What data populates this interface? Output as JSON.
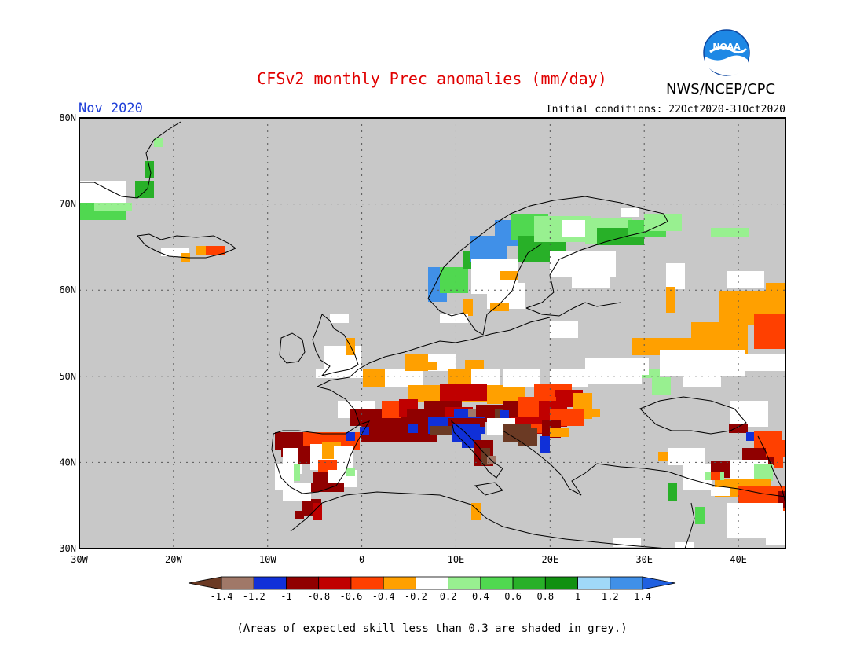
{
  "header": {
    "title": "CFSv2 monthly Prec anomalies (mm/day)",
    "agency": "NWS/NCEP/CPC",
    "logo_text": "NOAA",
    "month": "Nov 2020",
    "initial_conditions": "Initial conditions: 22Oct2020-31Oct2020"
  },
  "map": {
    "lon_range": [
      -30,
      45
    ],
    "lat_range": [
      30,
      80
    ],
    "lon_labels": [
      "30W",
      "20W",
      "10W",
      "0",
      "10E",
      "20E",
      "30E",
      "40E"
    ],
    "lat_labels": [
      "30N",
      "40N",
      "50N",
      "60N",
      "70N",
      "80N"
    ],
    "colors": {
      "grey_mask": "#c8c8c8",
      "neutral": "#ffffff"
    }
  },
  "legend": {
    "labels": [
      "-1.4",
      "-1.2",
      "-1",
      "-0.8",
      "-0.6",
      "-0.4",
      "-0.2",
      "0.2",
      "0.4",
      "0.6",
      "0.8",
      "1",
      "1.2",
      "1.4"
    ],
    "colors": [
      "#6b3a24",
      "#a07868",
      "#1030d8",
      "#900000",
      "#c00000",
      "#ff4000",
      "#ffa000",
      "#ffffff",
      "#98f090",
      "#50d850",
      "#28b028",
      "#109010",
      "#a0d8f8",
      "#4090e8",
      "#2060e0"
    ]
  },
  "footnote": "(Areas of expected skill less than 0.3 are shaded in grey.)"
}
